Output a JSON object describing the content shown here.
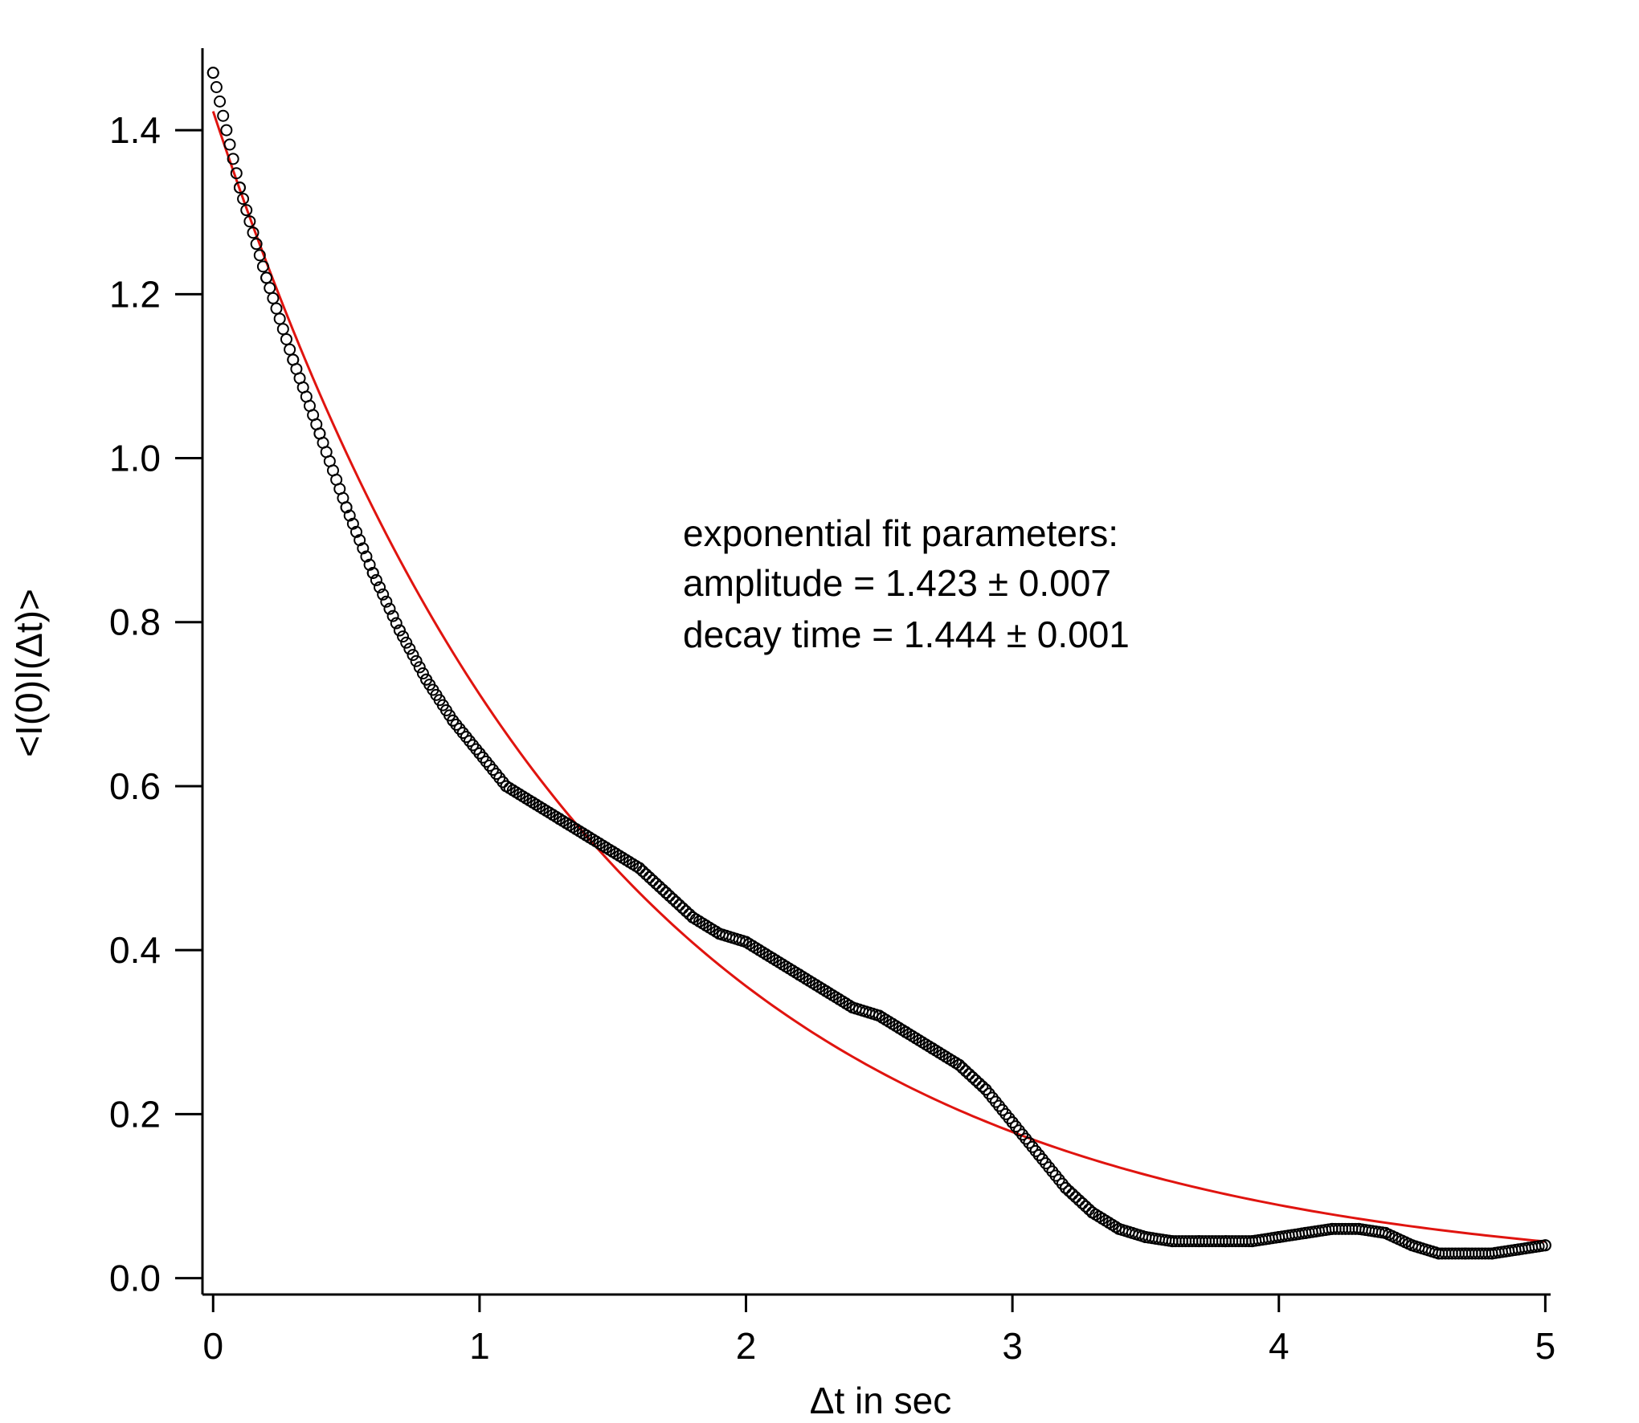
{
  "chart_data": {
    "type": "scatter",
    "title": "",
    "xlabel": "Δt in sec",
    "ylabel": "<I(0)I(Δt)>",
    "xlim": [
      -0.04,
      5.02
    ],
    "ylim": [
      -0.02,
      1.5
    ],
    "xticks": [
      0,
      1,
      2,
      3,
      4,
      5
    ],
    "xtick_labels": [
      "0",
      "1",
      "2",
      "3",
      "4",
      "5"
    ],
    "yticks": [
      0.0,
      0.2,
      0.4,
      0.6,
      0.8,
      1.0,
      1.2,
      1.4
    ],
    "ytick_labels": [
      "0.0",
      "0.2",
      "0.4",
      "0.6",
      "0.8",
      "1.0",
      "1.2",
      "1.4"
    ],
    "grid": false,
    "legend": "none",
    "annotations": [
      "exponential fit parameters:",
      "amplitude = 1.423 ± 0.007",
      "decay time = 1.444 ± 0.001"
    ],
    "series": [
      {
        "kind": "markers",
        "marker": "open-circle",
        "color": "#000000",
        "x": [
          0.0,
          0.1,
          0.2,
          0.3,
          0.4,
          0.5,
          0.6,
          0.7,
          0.8,
          0.9,
          1.0,
          1.1,
          1.2,
          1.3,
          1.4,
          1.5,
          1.6,
          1.7,
          1.8,
          1.9,
          2.0,
          2.1,
          2.2,
          2.3,
          2.4,
          2.5,
          2.6,
          2.7,
          2.8,
          2.9,
          3.0,
          3.1,
          3.2,
          3.3,
          3.4,
          3.5,
          3.6,
          3.7,
          3.8,
          3.9,
          4.0,
          4.1,
          4.2,
          4.3,
          4.4,
          4.5,
          4.6,
          4.7,
          4.8,
          4.9,
          5.0
        ],
        "y": [
          1.47,
          1.33,
          1.22,
          1.12,
          1.03,
          0.94,
          0.86,
          0.79,
          0.73,
          0.68,
          0.64,
          0.6,
          0.58,
          0.56,
          0.54,
          0.52,
          0.5,
          0.47,
          0.44,
          0.42,
          0.41,
          0.39,
          0.37,
          0.35,
          0.33,
          0.32,
          0.3,
          0.28,
          0.26,
          0.23,
          0.19,
          0.15,
          0.11,
          0.08,
          0.06,
          0.05,
          0.045,
          0.045,
          0.045,
          0.045,
          0.05,
          0.055,
          0.06,
          0.06,
          0.055,
          0.04,
          0.03,
          0.03,
          0.03,
          0.035,
          0.04
        ]
      },
      {
        "kind": "line",
        "color": "#e0140f",
        "fit": "exponential",
        "amplitude": 1.423,
        "decay_time": 1.444,
        "x_range": [
          0,
          5
        ]
      }
    ]
  }
}
